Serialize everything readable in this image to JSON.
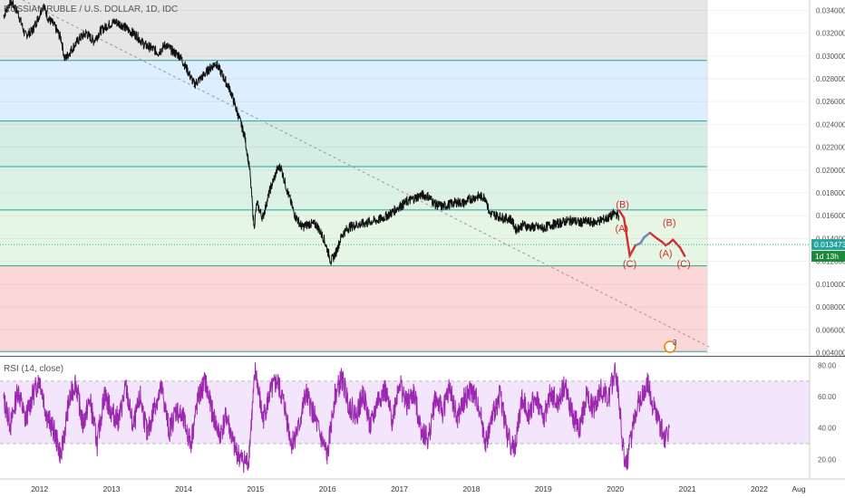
{
  "header": {
    "title": "RUSSIAN RUBLE / U.S. DOLLAR, 1D, IDC"
  },
  "rsi_panel": {
    "title": "RSI (14, close)"
  },
  "price_badges": {
    "last_price": "0.013473",
    "countdown": "1d 13h",
    "last_price_color": "#26a69a",
    "countdown_color": "#1b8a3a"
  },
  "event_marker": {
    "label": "3"
  },
  "colors": {
    "fib_zones": [
      "#e6e6e6",
      "#ddeeff",
      "#d4eee6",
      "#ddf2e6",
      "#e6f6e4",
      "#fbd7d7"
    ],
    "fib_line": "#2aa198",
    "price_line": "#111111",
    "wave_projection": "#d32f2f",
    "wave_blue": "#5b8fd6",
    "rsi_line": "#9c27b0",
    "rsi_band": "#f3e5fb",
    "trendline": "#999999"
  },
  "chart_data": [
    {
      "type": "line",
      "title": "RUSSIAN RUBLE / U.S. DOLLAR, 1D, IDC",
      "x_ticks": [
        "2012",
        "2013",
        "2014",
        "2015",
        "2016",
        "2017",
        "2018",
        "2019",
        "2020",
        "2021",
        "2022",
        "Aug"
      ],
      "y_ticks": [
        "0.004000",
        "0.006000",
        "0.008000",
        "0.010000",
        "0.012000",
        "0.014000",
        "0.016000",
        "0.018000",
        "0.020000",
        "0.022000",
        "0.024000",
        "0.026000",
        "0.028000",
        "0.030000",
        "0.032000",
        "0.034000"
      ],
      "ylim": [
        0.0038,
        0.0349
      ],
      "xlim": [
        2011.45,
        2022.7
      ],
      "fib_levels": [
        0.0296,
        0.0243,
        0.0203,
        0.0165,
        0.0116,
        0.0041
      ],
      "series": [
        {
          "values": [
            [
              2011.5,
              0.0335
            ],
            [
              2011.6,
              0.0348
            ],
            [
              2011.7,
              0.0338
            ],
            [
              2011.8,
              0.0318
            ],
            [
              2011.9,
              0.0322
            ],
            [
              2012.0,
              0.0336
            ],
            [
              2012.05,
              0.0345
            ],
            [
              2012.12,
              0.0333
            ],
            [
              2012.2,
              0.0327
            ],
            [
              2012.3,
              0.0315
            ],
            [
              2012.35,
              0.0297
            ],
            [
              2012.45,
              0.0306
            ],
            [
              2012.55,
              0.0315
            ],
            [
              2012.65,
              0.032
            ],
            [
              2012.75,
              0.0313
            ],
            [
              2012.85,
              0.0322
            ],
            [
              2012.95,
              0.0327
            ],
            [
              2013.05,
              0.033
            ],
            [
              2013.15,
              0.0327
            ],
            [
              2013.25,
              0.0322
            ],
            [
              2013.35,
              0.0318
            ],
            [
              2013.45,
              0.031
            ],
            [
              2013.55,
              0.0307
            ],
            [
              2013.65,
              0.0303
            ],
            [
              2013.75,
              0.031
            ],
            [
              2013.85,
              0.0304
            ],
            [
              2013.95,
              0.03
            ],
            [
              2014.05,
              0.0288
            ],
            [
              2014.15,
              0.0275
            ],
            [
              2014.25,
              0.0281
            ],
            [
              2014.35,
              0.0288
            ],
            [
              2014.45,
              0.0294
            ],
            [
              2014.55,
              0.0282
            ],
            [
              2014.65,
              0.027
            ],
            [
              2014.75,
              0.025
            ],
            [
              2014.85,
              0.023
            ],
            [
              2014.92,
              0.02
            ],
            [
              2014.98,
              0.015
            ],
            [
              2015.02,
              0.0171
            ],
            [
              2015.1,
              0.0158
            ],
            [
              2015.2,
              0.0182
            ],
            [
              2015.3,
              0.02
            ],
            [
              2015.35,
              0.0203
            ],
            [
              2015.45,
              0.018
            ],
            [
              2015.55,
              0.016
            ],
            [
              2015.65,
              0.015
            ],
            [
              2015.75,
              0.0153
            ],
            [
              2015.85,
              0.0152
            ],
            [
              2015.95,
              0.014
            ],
            [
              2016.05,
              0.012
            ],
            [
              2016.12,
              0.0128
            ],
            [
              2016.2,
              0.0143
            ],
            [
              2016.3,
              0.015
            ],
            [
              2016.4,
              0.0152
            ],
            [
              2016.5,
              0.0153
            ],
            [
              2016.6,
              0.0155
            ],
            [
              2016.7,
              0.0156
            ],
            [
              2016.8,
              0.0159
            ],
            [
              2016.9,
              0.0163
            ],
            [
              2017.0,
              0.0168
            ],
            [
              2017.1,
              0.0172
            ],
            [
              2017.2,
              0.0175
            ],
            [
              2017.3,
              0.0178
            ],
            [
              2017.4,
              0.0177
            ],
            [
              2017.5,
              0.017
            ],
            [
              2017.6,
              0.0168
            ],
            [
              2017.7,
              0.017
            ],
            [
              2017.8,
              0.0172
            ],
            [
              2017.9,
              0.0171
            ],
            [
              2018.0,
              0.0175
            ],
            [
              2018.1,
              0.0177
            ],
            [
              2018.2,
              0.0176
            ],
            [
              2018.25,
              0.0162
            ],
            [
              2018.35,
              0.016
            ],
            [
              2018.45,
              0.0158
            ],
            [
              2018.55,
              0.0157
            ],
            [
              2018.62,
              0.0148
            ],
            [
              2018.72,
              0.0152
            ],
            [
              2018.8,
              0.015
            ],
            [
              2018.9,
              0.015
            ],
            [
              2019.0,
              0.0149
            ],
            [
              2019.1,
              0.0152
            ],
            [
              2019.2,
              0.0153
            ],
            [
              2019.3,
              0.0155
            ],
            [
              2019.4,
              0.0156
            ],
            [
              2019.5,
              0.0154
            ],
            [
              2019.6,
              0.0155
            ],
            [
              2019.7,
              0.0154
            ],
            [
              2019.8,
              0.0156
            ],
            [
              2019.9,
              0.0158
            ],
            [
              2020.0,
              0.0162
            ],
            [
              2020.05,
              0.016
            ]
          ]
        },
        {
          "name": "projection",
          "values": [
            [
              2020.05,
              0.0165
            ],
            [
              2020.12,
              0.0158
            ],
            [
              2020.2,
              0.0125
            ],
            [
              2020.28,
              0.0134
            ],
            [
              2020.35,
              0.0136
            ],
            [
              2020.4,
              0.0141
            ],
            [
              2020.48,
              0.0145
            ],
            [
              2020.58,
              0.014
            ],
            [
              2020.65,
              0.0137
            ],
            [
              2020.7,
              0.0134
            ],
            [
              2020.75,
              0.0136
            ],
            [
              2020.8,
              0.0139
            ],
            [
              2020.9,
              0.0132
            ],
            [
              2020.97,
              0.0124
            ]
          ]
        }
      ],
      "annotations": [
        {
          "text": "(B)",
          "x": 2020.1,
          "y": 0.0167
        },
        {
          "text": "(A)",
          "x": 2020.09,
          "y": 0.0146
        },
        {
          "text": "(C)",
          "x": 2020.2,
          "y": 0.0115
        },
        {
          "text": "(B)",
          "x": 2020.75,
          "y": 0.0151
        },
        {
          "text": "(A)",
          "x": 2020.7,
          "y": 0.0124
        },
        {
          "text": "(C)",
          "x": 2020.95,
          "y": 0.0115
        }
      ]
    },
    {
      "type": "line",
      "title": "RSI (14, close)",
      "y_ticks": [
        "20.00",
        "40.00",
        "60.00",
        "80.00"
      ],
      "ylim": [
        8,
        85
      ],
      "band": [
        30,
        70
      ],
      "values": [
        [
          2011.5,
          58
        ],
        [
          2011.6,
          42
        ],
        [
          2011.7,
          65
        ],
        [
          2011.8,
          45
        ],
        [
          2011.9,
          60
        ],
        [
          2012.0,
          72
        ],
        [
          2012.1,
          48
        ],
        [
          2012.2,
          38
        ],
        [
          2012.3,
          22
        ],
        [
          2012.4,
          55
        ],
        [
          2012.5,
          70
        ],
        [
          2012.6,
          42
        ],
        [
          2012.7,
          58
        ],
        [
          2012.8,
          30
        ],
        [
          2012.9,
          62
        ],
        [
          2013.0,
          50
        ],
        [
          2013.1,
          45
        ],
        [
          2013.2,
          66
        ],
        [
          2013.3,
          40
        ],
        [
          2013.4,
          60
        ],
        [
          2013.5,
          35
        ],
        [
          2013.6,
          55
        ],
        [
          2013.7,
          65
        ],
        [
          2013.8,
          38
        ],
        [
          2013.9,
          52
        ],
        [
          2014.0,
          45
        ],
        [
          2014.1,
          30
        ],
        [
          2014.2,
          58
        ],
        [
          2014.3,
          70
        ],
        [
          2014.4,
          50
        ],
        [
          2014.5,
          35
        ],
        [
          2014.6,
          48
        ],
        [
          2014.7,
          28
        ],
        [
          2014.8,
          20
        ],
        [
          2014.9,
          18
        ],
        [
          2015.0,
          78
        ],
        [
          2015.1,
          45
        ],
        [
          2015.2,
          62
        ],
        [
          2015.3,
          70
        ],
        [
          2015.4,
          55
        ],
        [
          2015.5,
          30
        ],
        [
          2015.6,
          40
        ],
        [
          2015.7,
          62
        ],
        [
          2015.8,
          50
        ],
        [
          2015.9,
          35
        ],
        [
          2016.0,
          22
        ],
        [
          2016.1,
          60
        ],
        [
          2016.2,
          72
        ],
        [
          2016.3,
          55
        ],
        [
          2016.4,
          48
        ],
        [
          2016.5,
          62
        ],
        [
          2016.6,
          40
        ],
        [
          2016.7,
          58
        ],
        [
          2016.8,
          64
        ],
        [
          2016.9,
          45
        ],
        [
          2017.0,
          70
        ],
        [
          2017.1,
          55
        ],
        [
          2017.2,
          62
        ],
        [
          2017.3,
          40
        ],
        [
          2017.4,
          32
        ],
        [
          2017.5,
          60
        ],
        [
          2017.6,
          50
        ],
        [
          2017.7,
          66
        ],
        [
          2017.8,
          45
        ],
        [
          2017.9,
          58
        ],
        [
          2018.0,
          64
        ],
        [
          2018.1,
          55
        ],
        [
          2018.2,
          30
        ],
        [
          2018.3,
          48
        ],
        [
          2018.4,
          62
        ],
        [
          2018.5,
          35
        ],
        [
          2018.6,
          26
        ],
        [
          2018.7,
          58
        ],
        [
          2018.8,
          50
        ],
        [
          2018.9,
          60
        ],
        [
          2019.0,
          45
        ],
        [
          2019.1,
          62
        ],
        [
          2019.2,
          55
        ],
        [
          2019.3,
          68
        ],
        [
          2019.4,
          48
        ],
        [
          2019.5,
          40
        ],
        [
          2019.6,
          60
        ],
        [
          2019.7,
          52
        ],
        [
          2019.8,
          65
        ],
        [
          2019.9,
          58
        ],
        [
          2020.0,
          78
        ],
        [
          2020.05,
          60
        ],
        [
          2020.1,
          30
        ],
        [
          2020.15,
          15
        ],
        [
          2020.2,
          28
        ],
        [
          2020.3,
          55
        ],
        [
          2020.4,
          62
        ],
        [
          2020.45,
          70
        ],
        [
          2020.5,
          58
        ],
        [
          2020.6,
          45
        ],
        [
          2020.7,
          32
        ],
        [
          2020.75,
          40
        ]
      ]
    }
  ]
}
